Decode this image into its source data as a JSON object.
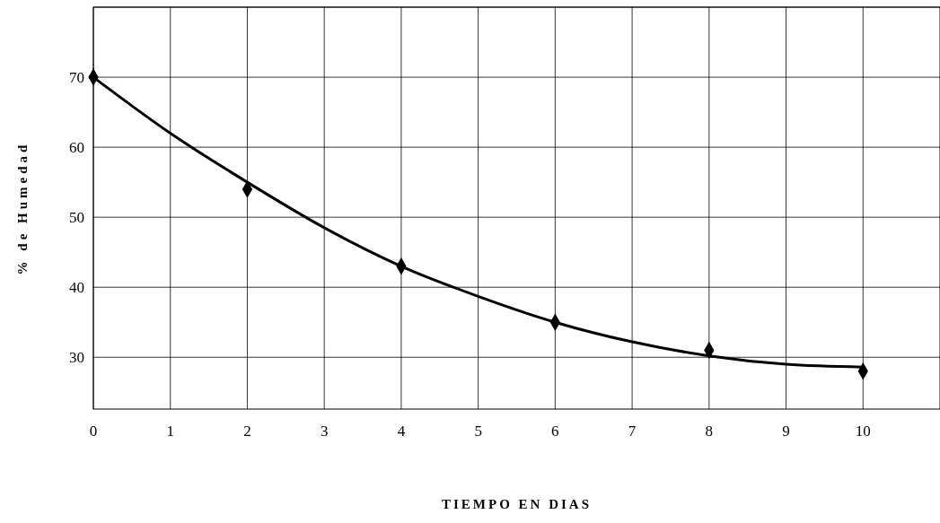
{
  "chart_data": {
    "type": "scatter",
    "xlabel": "TIEMPO EN DIAS",
    "ylabel": "% de Humedad",
    "xlim": [
      0,
      11
    ],
    "xticks": [
      0,
      1,
      2,
      3,
      4,
      5,
      6,
      7,
      8,
      9,
      10
    ],
    "ylim": [
      22.6,
      80
    ],
    "yticks": [
      30,
      40,
      50,
      60,
      70,
      {
        "value": 80,
        "label": null
      }
    ],
    "grid": true,
    "marker": "diamond",
    "series": [
      {
        "color": "#000000",
        "x": [
          0,
          2,
          4,
          6,
          8,
          10
        ],
        "values": [
          70,
          54,
          43,
          35,
          31,
          28
        ]
      },
      {
        "type": "line",
        "color": "#000000",
        "line_style": "solid",
        "marker": "none",
        "x": [
          0,
          1,
          2,
          3,
          4,
          5,
          6,
          7,
          8,
          9,
          10
        ],
        "values": [
          70,
          62,
          55,
          48.5,
          43,
          38.7,
          35,
          32.2,
          30.2,
          29,
          28.6
        ]
      }
    ]
  }
}
